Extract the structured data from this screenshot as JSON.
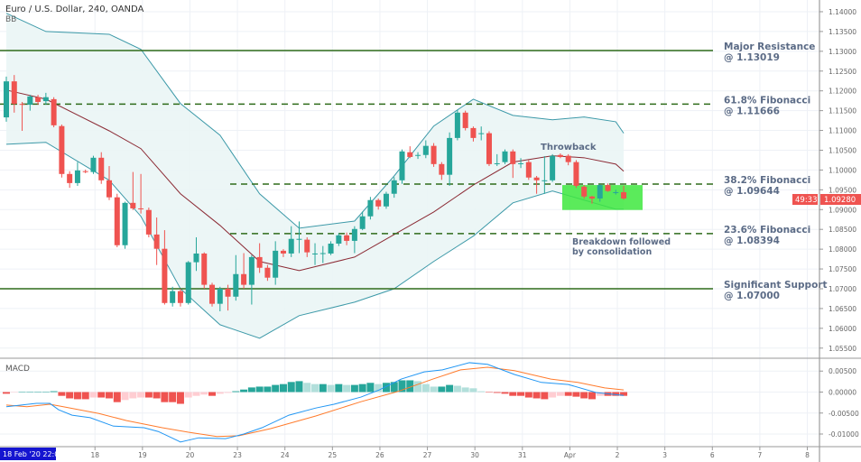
{
  "header": {
    "title": "Euro / U.S. Dollar, 240, OANDA",
    "indicator": "BB"
  },
  "macd_label": "MACD",
  "colors": {
    "up": "#26a69a",
    "down": "#ef5350",
    "bb": "#3c99a8",
    "basis": "#8b2a34",
    "fill": "#eaf5f5",
    "level": "#2e6b1a",
    "macd": "#2196f3",
    "signal": "#ff7b2c",
    "hist_up_strong": "#26a69a",
    "hist_up_weak": "#b2dfdb",
    "hist_dn_strong": "#ef5350",
    "hist_dn_weak": "#ffcdd2",
    "box": "#3ee83e",
    "annotation_text": "#5b6b86",
    "axis_badge": "#1515d0"
  },
  "price_axis": {
    "ticks": [
      "1.14000",
      "1.13500",
      "1.13000",
      "1.12500",
      "1.12000",
      "1.11500",
      "1.11000",
      "1.10500",
      "1.10000",
      "1.09500",
      "1.09000",
      "1.08500",
      "1.08000",
      "1.07500",
      "1.07000",
      "1.06500",
      "1.06000",
      "1.05500"
    ],
    "last_price": "1.09280",
    "countdown": "49:33"
  },
  "macd_axis": {
    "ticks": [
      "0.00500",
      "0.00000",
      "-0.00500",
      "-0.01000"
    ]
  },
  "time_axis": {
    "cursor_label": "18 Feb '20  22:00",
    "ticks": [
      "18",
      "19",
      "20",
      "23",
      "24",
      "25",
      "26",
      "27",
      "30",
      "31",
      "Apr",
      "2",
      "3",
      "6",
      "7",
      "8"
    ]
  },
  "levels": [
    {
      "name": "major-resistance",
      "line1": "Major Resistance",
      "line2": "@ 1.13019",
      "price": 1.13019,
      "style": "solid"
    },
    {
      "name": "fib-618",
      "line1": "61.8% Fibonacci",
      "line2": "@ 1.11666",
      "price": 1.11666,
      "style": "dashed"
    },
    {
      "name": "fib-382",
      "line1": "38.2% Fibonacci",
      "line2": "@ 1.09644",
      "price": 1.09644,
      "style": "dashed"
    },
    {
      "name": "fib-236",
      "line1": "23.6% Fibonacci",
      "line2": "@ 1.08394",
      "price": 1.08394,
      "style": "dashed"
    },
    {
      "name": "significant-support",
      "line1": "Significant Support",
      "line2": "@ 1.07000",
      "price": 1.07,
      "style": "solid"
    }
  ],
  "annotations": {
    "throwback": "Throwback",
    "breakdown_line1": "Breakdown followed",
    "breakdown_line2": "by consolidation",
    "box_price_range": [
      1.0899,
      1.0962
    ]
  },
  "chart_data": {
    "type": "candlestick",
    "symbol": "Euro / U.S. Dollar, 240, OANDA",
    "ylim": [
      1.053,
      1.143
    ],
    "candles": [
      [
        1.1133,
        1.1236,
        1.1122,
        1.1224
      ],
      [
        1.1224,
        1.124,
        1.1145,
        1.1167
      ],
      [
        1.1167,
        1.1172,
        1.1099,
        1.1165
      ],
      [
        1.1165,
        1.119,
        1.115,
        1.1186
      ],
      [
        1.1184,
        1.119,
        1.1165,
        1.1172
      ],
      [
        1.1174,
        1.1195,
        1.1165,
        1.1184
      ],
      [
        1.1179,
        1.1184,
        1.1108,
        1.1113
      ],
      [
        1.1111,
        1.1115,
        1.0981,
        1.099
      ],
      [
        1.099,
        1.0997,
        1.0955,
        1.0967
      ],
      [
        1.0967,
        1.102,
        1.096,
        1.0999
      ],
      [
        1.0997,
        1.1001,
        1.0992,
        1.0995
      ],
      [
        1.0995,
        1.1036,
        1.099,
        1.1031
      ],
      [
        1.1031,
        1.1045,
        1.0965,
        1.0974
      ],
      [
        1.0974,
        1.101,
        1.0924,
        1.0931
      ],
      [
        1.0931,
        1.094,
        1.0805,
        1.081
      ],
      [
        1.081,
        1.092,
        1.0801,
        1.0917
      ],
      [
        1.0917,
        1.0995,
        1.0899,
        1.0903
      ],
      [
        1.0903,
        1.099,
        1.089,
        1.0901
      ],
      [
        1.0899,
        1.0905,
        1.083,
        1.0837
      ],
      [
        1.0837,
        1.088,
        1.076,
        1.0801
      ],
      [
        1.0801,
        1.0848,
        1.066,
        1.0664
      ],
      [
        1.0664,
        1.0705,
        1.0655,
        1.0694
      ],
      [
        1.0694,
        1.07,
        1.0655,
        1.0664
      ],
      [
        1.0664,
        1.077,
        1.066,
        1.0767
      ],
      [
        1.0767,
        1.083,
        1.0745,
        1.0789
      ],
      [
        1.0789,
        1.0792,
        1.07,
        1.071
      ],
      [
        1.071,
        1.0715,
        1.0655,
        1.0662
      ],
      [
        1.0662,
        1.0705,
        1.0643,
        1.07
      ],
      [
        1.07,
        1.071,
        1.0645,
        1.068
      ],
      [
        1.068,
        1.0785,
        1.067,
        1.0737
      ],
      [
        1.0737,
        1.079,
        1.07,
        1.071
      ],
      [
        1.071,
        1.0785,
        1.066,
        1.078
      ],
      [
        1.078,
        1.0815,
        1.074,
        1.0753
      ],
      [
        1.0753,
        1.076,
        1.072,
        1.0728
      ],
      [
        1.0728,
        1.082,
        1.071,
        1.0796
      ],
      [
        1.0796,
        1.08,
        1.078,
        1.0789
      ],
      [
        1.0789,
        1.0858,
        1.078,
        1.0826
      ],
      [
        1.0826,
        1.087,
        1.079,
        1.0826
      ],
      [
        1.0824,
        1.083,
        1.078,
        1.0792
      ],
      [
        1.0789,
        1.0815,
        1.076,
        1.0789
      ],
      [
        1.0789,
        1.0808,
        1.0765,
        1.079
      ],
      [
        1.0789,
        1.082,
        1.0785,
        1.0814
      ],
      [
        1.0814,
        1.084,
        1.0808,
        1.0835
      ],
      [
        1.0835,
        1.0842,
        1.081,
        1.0821
      ],
      [
        1.0821,
        1.0858,
        1.079,
        1.0851
      ],
      [
        1.0851,
        1.0895,
        1.0848,
        1.0883
      ],
      [
        1.0883,
        1.0932,
        1.0875,
        1.0924
      ],
      [
        1.0924,
        1.0928,
        1.09,
        1.0908
      ],
      [
        1.0908,
        1.0945,
        1.0902,
        1.094
      ],
      [
        1.094,
        1.0982,
        1.093,
        1.0974
      ],
      [
        1.0974,
        1.1052,
        1.0965,
        1.1047
      ],
      [
        1.1045,
        1.106,
        1.103,
        1.1033
      ],
      [
        1.1038,
        1.1045,
        1.1028,
        1.1038
      ],
      [
        1.1038,
        1.1075,
        1.103,
        1.1061
      ],
      [
        1.1061,
        1.1068,
        1.1008,
        1.1015
      ],
      [
        1.1015,
        1.102,
        1.0975,
        1.0988
      ],
      [
        1.0988,
        1.1095,
        1.096,
        1.1081
      ],
      [
        1.1081,
        1.1152,
        1.1075,
        1.1145
      ],
      [
        1.1145,
        1.115,
        1.11,
        1.1106
      ],
      [
        1.1106,
        1.111,
        1.1072,
        1.1081
      ],
      [
        1.1093,
        1.111,
        1.1075,
        1.1093
      ],
      [
        1.1093,
        1.1098,
        1.101,
        1.1015
      ],
      [
        1.1017,
        1.104,
        1.101,
        1.1017
      ],
      [
        1.102,
        1.1052,
        1.1015,
        1.1047
      ],
      [
        1.1047,
        1.1052,
        1.098,
        1.1015
      ],
      [
        1.1017,
        1.103,
        1.1005,
        1.1017
      ],
      [
        1.102,
        1.1025,
        1.0975,
        1.0981
      ],
      [
        1.0981,
        1.0985,
        1.094,
        1.0974
      ],
      [
        1.0974,
        1.1035,
        1.094,
        1.0974
      ],
      [
        1.0974,
        1.104,
        1.097,
        1.1036
      ],
      [
        1.1038,
        1.1042,
        1.103,
        1.1033
      ],
      [
        1.1036,
        1.104,
        1.1012,
        1.102
      ],
      [
        1.102,
        1.1025,
        1.0955,
        1.096
      ],
      [
        1.0958,
        1.0962,
        1.0928,
        1.0933
      ],
      [
        1.0933,
        1.0935,
        1.0915,
        1.0928
      ],
      [
        1.0928,
        1.0964,
        1.092,
        1.0962
      ],
      [
        1.0962,
        1.0966,
        1.0945,
        1.0947
      ],
      [
        1.0944,
        1.095,
        1.0938,
        1.0944
      ],
      [
        1.0944,
        1.096,
        1.0925,
        1.0928
      ]
    ],
    "bollinger": {
      "bars": [
        0,
        5,
        13,
        17,
        22,
        27,
        32,
        37,
        44,
        49,
        54,
        59,
        64,
        69,
        73,
        77,
        78
      ],
      "upper": [
        1.1396,
        1.135,
        1.1343,
        1.1305,
        1.1168,
        1.1088,
        1.094,
        1.0853,
        1.0871,
        1.0985,
        1.1111,
        1.1179,
        1.1138,
        1.1127,
        1.1134,
        1.1122,
        1.1093
      ],
      "basis": [
        1.1202,
        1.1179,
        1.1099,
        1.1054,
        1.094,
        1.086,
        1.0769,
        1.0746,
        1.078,
        1.0837,
        1.0894,
        1.0962,
        1.102,
        1.1036,
        1.1031,
        1.1015,
        1.0997
      ],
      "lower": [
        1.1065,
        1.107,
        1.0974,
        1.0883,
        1.07,
        1.0609,
        1.0575,
        1.0632,
        1.0666,
        1.07,
        1.0769,
        1.0833,
        1.0917,
        1.0947,
        1.0924,
        1.0901,
        1.0901
      ]
    },
    "macd": {
      "ylim": [
        -0.0128,
        0.0085
      ],
      "histogram": [
        -0.0004,
        -0.0001,
        0,
        0.0001,
        0.0001,
        0.0001,
        0.0002,
        -0.0009,
        -0.0015,
        -0.0017,
        -0.0017,
        -0.0013,
        -0.0013,
        -0.0015,
        -0.0024,
        -0.0019,
        -0.0015,
        -0.0013,
        -0.0013,
        -0.0015,
        -0.0024,
        -0.0024,
        -0.0028,
        -0.0013,
        -0.0009,
        -0.0006,
        -0.0009,
        -0.0004,
        -0.0002,
        0.0002,
        0.0006,
        0.0011,
        0.0013,
        0.0013,
        0.0017,
        0.0019,
        0.0024,
        0.0026,
        0.0022,
        0.0019,
        0.0019,
        0.0017,
        0.0019,
        0.0017,
        0.0017,
        0.0019,
        0.0022,
        0.0019,
        0.0022,
        0.0024,
        0.0028,
        0.0028,
        0.0026,
        0.0019,
        0.0013,
        0.0013,
        0.0017,
        0.0015,
        0.0011,
        0.0009,
        0.0002,
        -0.0001,
        -0.0002,
        -0.0004,
        -0.0009,
        -0.0009,
        -0.0013,
        -0.0015,
        -0.0017,
        -0.0013,
        -0.0009,
        -0.0009,
        -0.0011,
        -0.0015,
        -0.0017,
        -0.0009,
        -0.0009,
        -0.0009,
        -0.0009
      ],
      "macd_line": {
        "bars": [
          0,
          3.8,
          5.5,
          6.6,
          8.3,
          10.6,
          13.5,
          17.4,
          19.2,
          20.9,
          22,
          24.3,
          27.7,
          30,
          32.3,
          35.7,
          39.1,
          41.4,
          44.8,
          47.1,
          49.9,
          52.8,
          55.1,
          58.5,
          60.8,
          64.2,
          67.6,
          71,
          74.5,
          78
        ],
        "values": [
          -0.0035,
          -0.0027,
          -0.0027,
          -0.0042,
          -0.0055,
          -0.0061,
          -0.0081,
          -0.0085,
          -0.0094,
          -0.0109,
          -0.0119,
          -0.0109,
          -0.0111,
          -0.01,
          -0.0085,
          -0.0055,
          -0.0038,
          -0.0029,
          -0.0012,
          0.0005,
          0.0031,
          0.0048,
          0.0053,
          0.007,
          0.0066,
          0.0042,
          0.0023,
          0.0018,
          -0.0001,
          -0.0008
        ]
      },
      "signal_line": {
        "bars": [
          0,
          2.6,
          5.5,
          7.2,
          11.7,
          15.2,
          19.7,
          23.1,
          26.6,
          29.4,
          33.4,
          39.1,
          44.8,
          49.4,
          53.9,
          57.4,
          60.8,
          64.2,
          68.8,
          72.2,
          75.6,
          78
        ],
        "values": [
          -0.0031,
          -0.0035,
          -0.0029,
          -0.0035,
          -0.0051,
          -0.0068,
          -0.0085,
          -0.0096,
          -0.0106,
          -0.0104,
          -0.0087,
          -0.0057,
          -0.0023,
          0.0001,
          0.0031,
          0.0053,
          0.0059,
          0.0051,
          0.0031,
          0.0023,
          0.001,
          0.0005
        ]
      }
    }
  }
}
